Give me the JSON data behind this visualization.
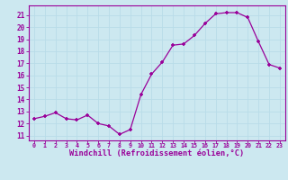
{
  "x": [
    0,
    1,
    2,
    3,
    4,
    5,
    6,
    7,
    8,
    9,
    10,
    11,
    12,
    13,
    14,
    15,
    16,
    17,
    18,
    19,
    20,
    21,
    22,
    23
  ],
  "y": [
    12.4,
    12.6,
    12.9,
    12.4,
    12.3,
    12.7,
    12.0,
    11.8,
    11.1,
    11.5,
    14.4,
    16.1,
    17.1,
    18.5,
    18.6,
    19.3,
    20.3,
    21.1,
    21.2,
    21.2,
    20.8,
    18.8,
    16.9,
    16.6
  ],
  "line_color": "#990099",
  "marker": "+",
  "bg_color": "#cce8f0",
  "grid_color": "#aad4e0",
  "xlabel": "Windchill (Refroidissement éolien,°C)",
  "xlabel_color": "#990099",
  "tick_color": "#990099",
  "ylabel_ticks": [
    11,
    12,
    13,
    14,
    15,
    16,
    17,
    18,
    19,
    20,
    21
  ],
  "ylim": [
    10.6,
    21.8
  ],
  "xlim": [
    -0.5,
    23.5
  ]
}
